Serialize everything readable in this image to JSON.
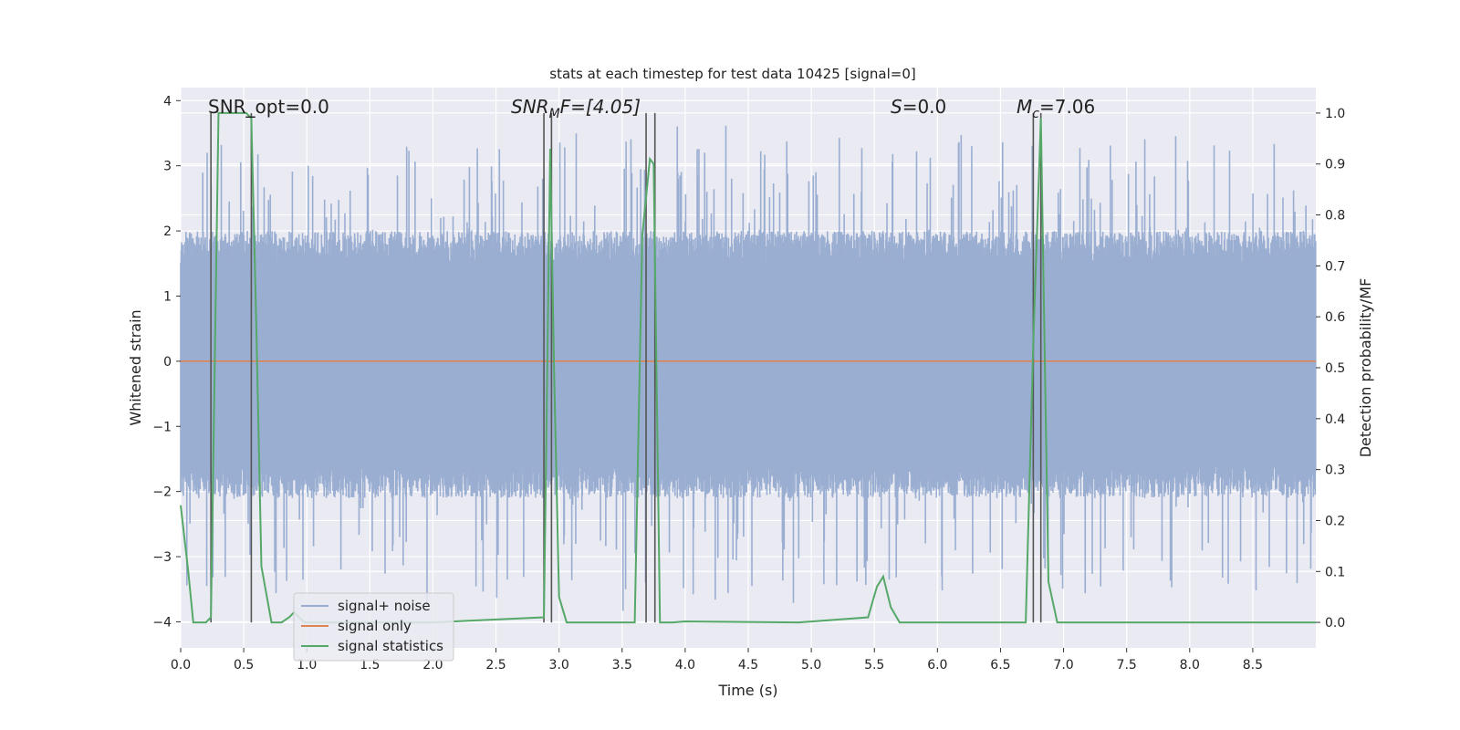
{
  "chart_data": {
    "type": "line",
    "title": "stats at each timestep for test data 10425 [signal=0]",
    "xlabel": "Time (s)",
    "ylabel": "Whitened strain",
    "y2label": "Detection probability/MF",
    "xlim": [
      0.0,
      9.0
    ],
    "ylim": [
      -4.4,
      4.2
    ],
    "y2lim": [
      -0.05,
      1.05
    ],
    "xticks": [
      0.0,
      0.5,
      1.0,
      1.5,
      2.0,
      2.5,
      3.0,
      3.5,
      4.0,
      4.5,
      5.0,
      5.5,
      6.0,
      6.5,
      7.0,
      7.5,
      8.0,
      8.5
    ],
    "yticks": [
      -4,
      -3,
      -2,
      -1,
      0,
      1,
      2,
      3,
      4
    ],
    "y2ticks": [
      0.0,
      0.1,
      0.2,
      0.3,
      0.4,
      0.5,
      0.6,
      0.7,
      0.8,
      0.9,
      1.0
    ],
    "grid": true,
    "legend_position": "lower-left",
    "annotations": {
      "snr_opt": "SNR_opt=0.0",
      "snr_mf_sym": "SNR",
      "snr_mf_sub": "M",
      "snr_mf_rest": "F=[4.05]",
      "s_sym": "S",
      "s_rest": "=0.0",
      "mc_sym": "M",
      "mc_sub": "c",
      "mc_rest": "=7.06"
    },
    "series": [
      {
        "name": "signal+ noise",
        "color": "#9aaed2",
        "axis": "left",
        "kind": "noise",
        "envelope": {
          "typical_low": -1.6,
          "typical_high": 1.5,
          "peak_max": 3.8,
          "peak_min": -3.9
        }
      },
      {
        "name": "signal only",
        "color": "#dd8452",
        "axis": "left",
        "x": [
          0.0,
          9.0
        ],
        "y": [
          0.0,
          0.0
        ]
      },
      {
        "name": "signal statistics",
        "color": "#55a868",
        "axis": "right",
        "x": [
          0.0,
          0.06,
          0.1,
          0.2,
          0.24,
          0.3,
          0.52,
          0.56,
          0.6,
          0.64,
          0.72,
          0.8,
          0.86,
          0.9,
          0.98,
          2.0,
          2.88,
          2.93,
          2.96,
          3.0,
          3.06,
          3.6,
          3.66,
          3.72,
          3.75,
          3.8,
          3.9,
          4.0,
          4.9,
          5.45,
          5.52,
          5.57,
          5.63,
          5.7,
          6.7,
          6.76,
          6.82,
          6.88,
          6.95,
          9.0
        ],
        "y": [
          0.23,
          0.1,
          0.0,
          0.0,
          0.01,
          1.0,
          1.0,
          0.99,
          0.58,
          0.11,
          0.0,
          0.0,
          0.01,
          0.02,
          0.0,
          0.0,
          0.01,
          0.93,
          0.5,
          0.05,
          0.0,
          0.0,
          0.76,
          0.91,
          0.9,
          0.0,
          0.0,
          0.002,
          0.0,
          0.01,
          0.07,
          0.09,
          0.03,
          0.0,
          0.0,
          0.55,
          0.99,
          0.08,
          0.0,
          0.0
        ]
      }
    ],
    "marker_lines": {
      "color": "#555555",
      "y2_range": [
        0.0,
        1.0
      ],
      "x": [
        0.24,
        0.56,
        2.88,
        2.94,
        3.69,
        3.76,
        6.76,
        6.82
      ]
    }
  }
}
